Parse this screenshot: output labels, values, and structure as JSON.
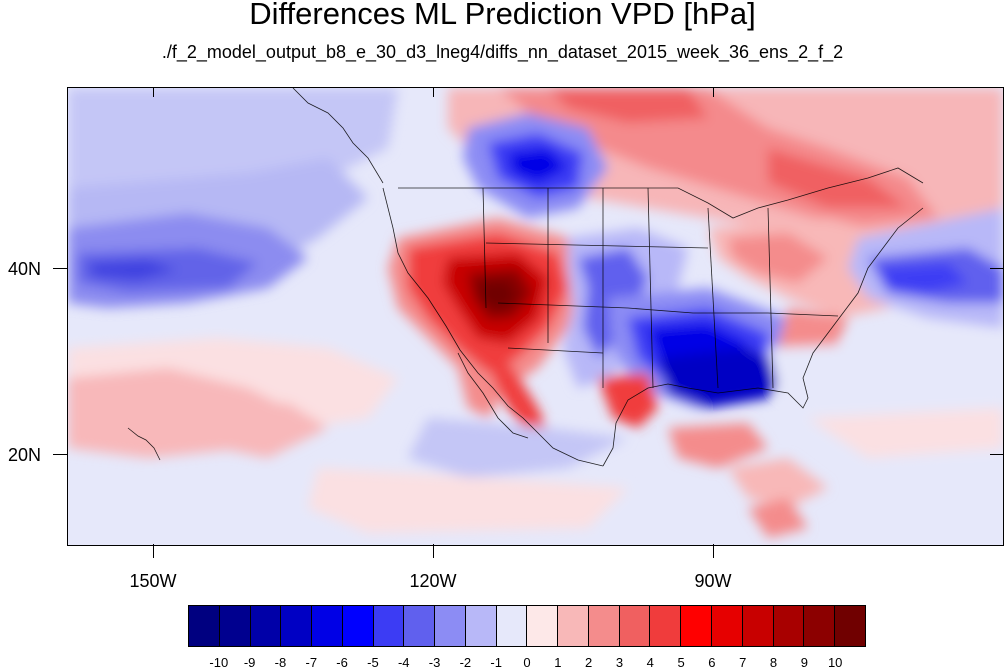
{
  "title": "Differences ML Prediction VPD [hPa]",
  "subtitle": "./f_2_model_output_b8_e_30_d3_lneg4/diffs_nn_dataset_2015_week_36_ens_2_f_2",
  "map": {
    "projection": "cylindrical equidistant",
    "lon_range": [
      -160,
      -60
    ],
    "lat_range": [
      10,
      59
    ],
    "lon_ticks": [
      {
        "value": -150,
        "label": "150W"
      },
      {
        "value": -120,
        "label": "120W"
      },
      {
        "value": -90,
        "label": "90W"
      }
    ],
    "lat_ticks": [
      {
        "value": 40,
        "label": "40N"
      },
      {
        "value": 20,
        "label": "20N"
      }
    ],
    "field": "VPD difference (hPa)",
    "features": [
      "coastlines",
      "US state boundaries",
      "country borders"
    ]
  },
  "colorbar": {
    "labels": [
      "-10",
      "-9",
      "-8",
      "-7",
      "-6",
      "-5",
      "-4",
      "-3",
      "-2",
      "-1",
      "0",
      "1",
      "2",
      "3",
      "4",
      "5",
      "6",
      "7",
      "8",
      "9",
      "10"
    ],
    "colors": [
      "#000080",
      "#00008f",
      "#0000a8",
      "#0000c4",
      "#0000e6",
      "#0000ff",
      "#3c3cf4",
      "#6060ee",
      "#8c8cf4",
      "#b8b8f8",
      "#e6e8fa",
      "#fde8e8",
      "#f8b8b8",
      "#f48c8c",
      "#f06060",
      "#f03c3c",
      "#ff0000",
      "#e60000",
      "#c80000",
      "#a80000",
      "#8c0000",
      "#700000"
    ]
  }
}
